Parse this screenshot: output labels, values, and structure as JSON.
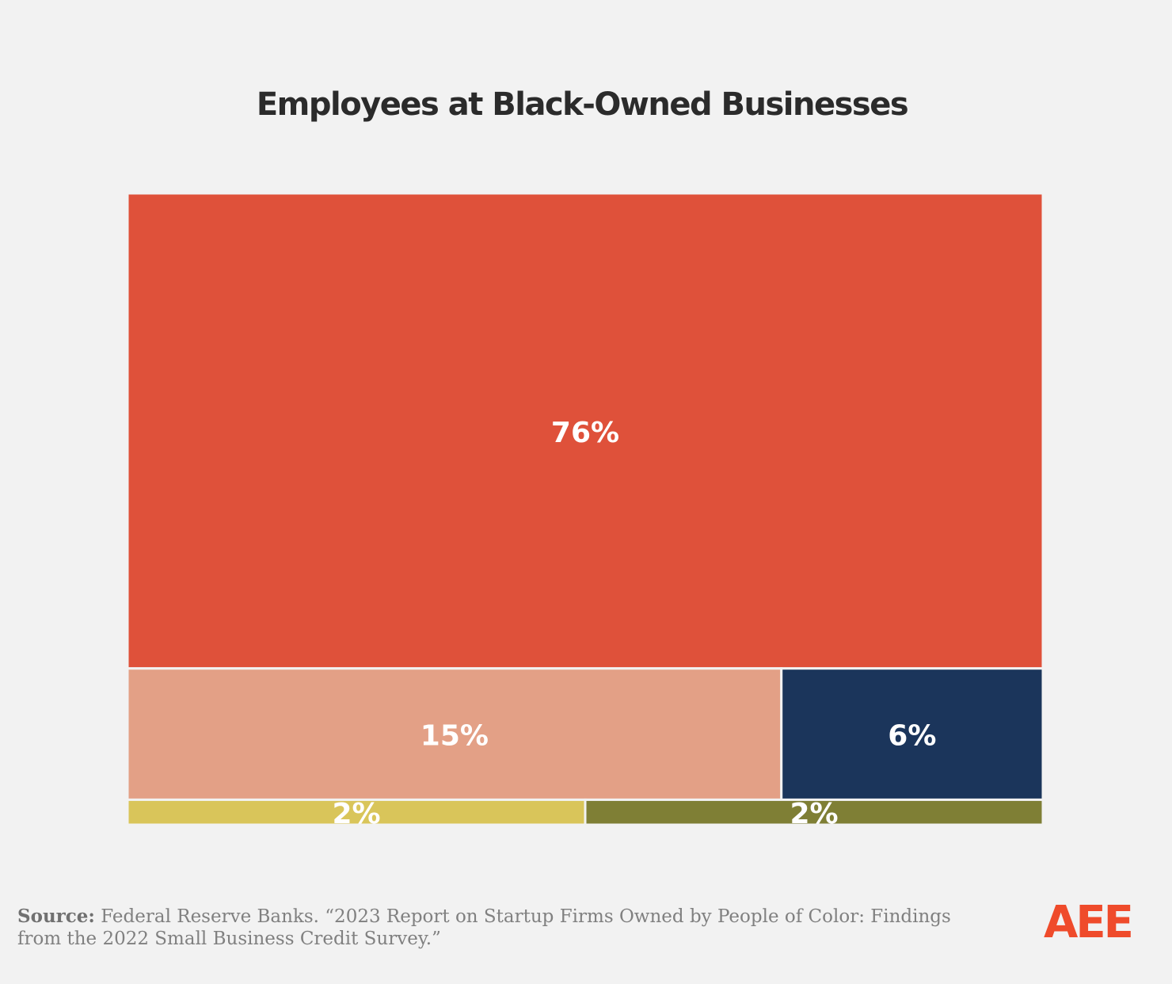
{
  "chart_data": {
    "type": "treemap",
    "title": "Employees at Black-Owned Businesses",
    "values": [
      76,
      15,
      6,
      2,
      2
    ],
    "value_labels": [
      "76%",
      "15%",
      "6%",
      "2%",
      "2%"
    ],
    "colors": [
      "#df513a",
      "#e3a086",
      "#1b355b",
      "#d9c55a",
      "#7f7f35"
    ]
  },
  "footer": {
    "source_label": "Source:",
    "source_text": "Federal Reserve Banks. “2023 Report on Startup Firms Owned by People of Color: Findings from the 2022 Small Business Credit Survey.”",
    "logo": "AEE"
  }
}
